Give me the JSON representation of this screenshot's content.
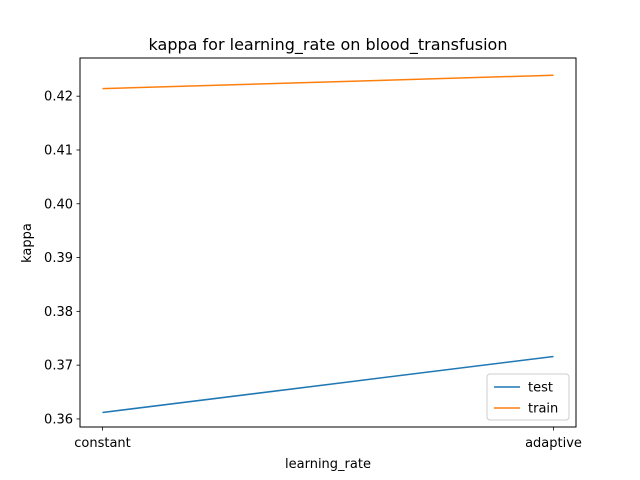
{
  "chart_data": {
    "type": "line",
    "title": "kappa for learning_rate on  blood_transfusion",
    "xlabel": "learning_rate",
    "ylabel": "kappa",
    "categories": [
      "constant",
      "adaptive"
    ],
    "ylim": [
      0.3585,
      0.4271
    ],
    "yticks": [
      0.36,
      0.37,
      0.38,
      0.39,
      0.4,
      0.41,
      0.42
    ],
    "ytick_labels": [
      "0.36",
      "0.37",
      "0.38",
      "0.39",
      "0.40",
      "0.41",
      "0.42"
    ],
    "series": [
      {
        "name": "test",
        "color": "#1f77b4",
        "values": [
          0.3612,
          0.3716
        ]
      },
      {
        "name": "train",
        "color": "#ff7f0e",
        "values": [
          0.4214,
          0.4239
        ]
      }
    ],
    "legend_position": "lower-right",
    "grid": false
  }
}
